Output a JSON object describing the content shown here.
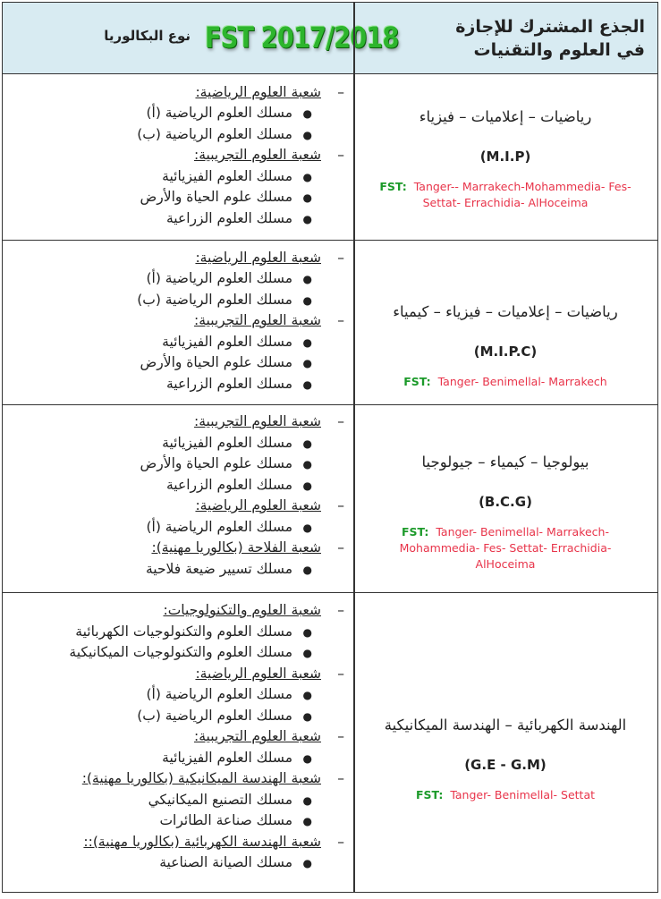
{
  "header": {
    "col_right": [
      "الجذع المشترك للإجازة",
      "في العلوم والتقنيات"
    ],
    "col_left": "نوع البكالوريا",
    "stamp": "FST 2017/2018"
  },
  "colors": {
    "header_bg": "#d8ebf2",
    "fst_label": "#1c9a2a",
    "cities": "#e8344a",
    "stamp": "#2db52d"
  },
  "rows": [
    {
      "title": "رياضيات – إعلاميات – فيزياء",
      "code": "(M.I.P)",
      "fst_label": "FST:",
      "cities": "Tanger-- Marrakech-Mohammedia- Fes- Settat- Errachidia- AlHoceima",
      "lines": [
        {
          "type": "dash",
          "text": "شعبة العلوم الرياضية:"
        },
        {
          "type": "bullet",
          "text": "مسلك العلوم الرياضية (أ)"
        },
        {
          "type": "bullet",
          "text": "مسلك العلوم الرياضية (ب)"
        },
        {
          "type": "dash",
          "text": "شعبة العلوم التجريبية:"
        },
        {
          "type": "bullet",
          "text": "مسلك العلوم الفيزيائية"
        },
        {
          "type": "bullet",
          "text": "مسلك علوم الحياة والأرض"
        },
        {
          "type": "bullet",
          "text": "مسلك العلوم الزراعية"
        }
      ]
    },
    {
      "title": "رياضيات – إعلاميات – فيزياء – كيمياء",
      "code": "(M.I.P.C)",
      "fst_label": "FST:",
      "cities": "Tanger- Benimellal- Marrakech",
      "lines": [
        {
          "type": "dash",
          "text": "شعبة العلوم الرياضية:"
        },
        {
          "type": "bullet",
          "text": "مسلك العلوم الرياضية (أ)"
        },
        {
          "type": "bullet",
          "text": "مسلك العلوم الرياضية (ب)"
        },
        {
          "type": "dash",
          "text": "شعبة العلوم التجريبية:"
        },
        {
          "type": "bullet",
          "text": "مسلك العلوم الفيزيائية"
        },
        {
          "type": "bullet",
          "text": "مسلك علوم الحياة والأرض"
        },
        {
          "type": "bullet",
          "text": "مسلك العلوم الزراعية"
        }
      ]
    },
    {
      "title": "بيولوجيا – كيمياء – جيولوجيا",
      "code": "(B.C.G)",
      "fst_label": "FST:",
      "cities": "Tanger- Benimellal- Marrakech- Mohammedia- Fes- Settat- Errachidia- AlHoceima",
      "lines": [
        {
          "type": "dash",
          "text": "شعبة العلوم التجريبية:"
        },
        {
          "type": "bullet",
          "text": "مسلك العلوم الفيزيائية"
        },
        {
          "type": "bullet",
          "text": "مسلك علوم الحياة والأرض"
        },
        {
          "type": "bullet",
          "text": "مسلك العلوم الزراعية"
        },
        {
          "type": "dash",
          "text": "شعبة العلوم الرياضية:"
        },
        {
          "type": "bullet",
          "text": "مسلك العلوم الرياضية (أ)"
        },
        {
          "type": "dash",
          "text": "شعبة الفلاحة (بكالوريا مهنية):"
        },
        {
          "type": "bullet",
          "text": "مسلك تسيير ضيعة فلاحية"
        }
      ]
    },
    {
      "title": "الهندسة الكهربائية – الهندسة الميكانيكية",
      "code": "(G.E - G.M)",
      "fst_label": "FST:",
      "cities": "Tanger- Benimellal- Settat",
      "lines": [
        {
          "type": "dash",
          "text": "شعبة العلوم والتكنولوجيات:"
        },
        {
          "type": "bullet",
          "text": "مسلك العلوم والتكنولوجيات الكهربائية"
        },
        {
          "type": "bullet",
          "text": "مسلك العلوم والتكنولوجيات الميكانيكية"
        },
        {
          "type": "dash",
          "text": "شعبة العلوم الرياضية:"
        },
        {
          "type": "bullet",
          "text": "مسلك العلوم الرياضية (أ)"
        },
        {
          "type": "bullet",
          "text": "مسلك العلوم الرياضية (ب)"
        },
        {
          "type": "dash",
          "text": "شعبة العلوم التجريبية:"
        },
        {
          "type": "bullet",
          "text": "مسلك العلوم الفيزيائية"
        },
        {
          "type": "dash",
          "text": "شعبة الهندسة الميكانيكية (بكالوريا مهنية):"
        },
        {
          "type": "bullet",
          "text": "مسلك التصنيع الميكانيكي"
        },
        {
          "type": "bullet",
          "text": "مسلك صناعة الطائرات"
        },
        {
          "type": "dash",
          "text": "شعبة الهندسة الكهربائية (بكالوريا مهنية)::"
        },
        {
          "type": "bullet",
          "text": "مسلك الصيانة الصناعية"
        }
      ]
    }
  ]
}
